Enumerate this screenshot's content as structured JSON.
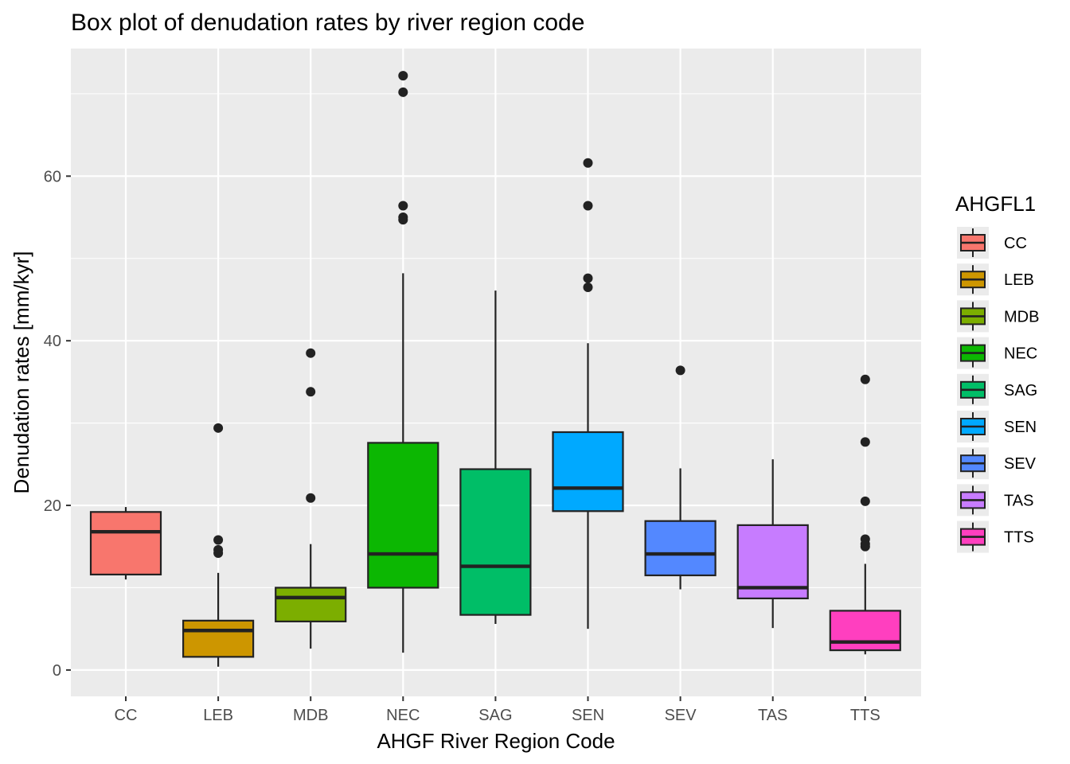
{
  "chart_data": {
    "type": "box",
    "title": "Box plot of denudation rates by river region code",
    "xlabel": "AHGF River Region Code",
    "ylabel": "Denudation rates [mm/kyr]",
    "ylim": [
      -3.2,
      75.5
    ],
    "yticks": [
      0,
      20,
      40,
      60
    ],
    "grid": true,
    "legend": {
      "title": "AHGFL1",
      "position": "right"
    },
    "categories": [
      "CC",
      "LEB",
      "MDB",
      "NEC",
      "SAG",
      "SEN",
      "SEV",
      "TAS",
      "TTS"
    ],
    "colors": [
      "#F8766D",
      "#CD9600",
      "#7CAE00",
      "#0CB702",
      "#00BE67",
      "#00A9FF",
      "#5388FF",
      "#C77CFF",
      "#FF3FBF"
    ],
    "series": [
      {
        "name": "CC",
        "whisker_low": 11.0,
        "q1": 11.6,
        "median": 16.8,
        "q3": 19.2,
        "whisker_high": 19.8,
        "outliers": []
      },
      {
        "name": "LEB",
        "whisker_low": 0.4,
        "q1": 1.6,
        "median": 4.8,
        "q3": 6.0,
        "whisker_high": 11.8,
        "outliers": [
          14.2,
          14.6,
          15.8,
          29.4
        ]
      },
      {
        "name": "MDB",
        "whisker_low": 2.6,
        "q1": 5.9,
        "median": 8.8,
        "q3": 10.0,
        "whisker_high": 15.3,
        "outliers": [
          20.9,
          33.8,
          38.5
        ]
      },
      {
        "name": "NEC",
        "whisker_low": 2.1,
        "q1": 10.0,
        "median": 14.1,
        "q3": 27.6,
        "whisker_high": 48.2,
        "outliers": [
          54.7,
          55.0,
          56.4,
          70.2,
          72.2
        ]
      },
      {
        "name": "SAG",
        "whisker_low": 5.6,
        "q1": 6.7,
        "median": 12.6,
        "q3": 24.4,
        "whisker_high": 46.1,
        "outliers": []
      },
      {
        "name": "SEN",
        "whisker_low": 5.0,
        "q1": 19.3,
        "median": 22.1,
        "q3": 28.9,
        "whisker_high": 39.7,
        "outliers": [
          46.5,
          47.6,
          56.4,
          61.6
        ]
      },
      {
        "name": "SEV",
        "whisker_low": 9.8,
        "q1": 11.5,
        "median": 14.1,
        "q3": 18.1,
        "whisker_high": 24.5,
        "outliers": [
          36.4
        ]
      },
      {
        "name": "TAS",
        "whisker_low": 5.1,
        "q1": 8.7,
        "median": 10.0,
        "q3": 17.6,
        "whisker_high": 25.6,
        "outliers": []
      },
      {
        "name": "TTS",
        "whisker_low": 1.9,
        "q1": 2.4,
        "median": 3.4,
        "q3": 7.2,
        "whisker_high": 12.9,
        "outliers": [
          15.0,
          15.3,
          15.9,
          20.5,
          27.7,
          35.3
        ]
      }
    ]
  }
}
